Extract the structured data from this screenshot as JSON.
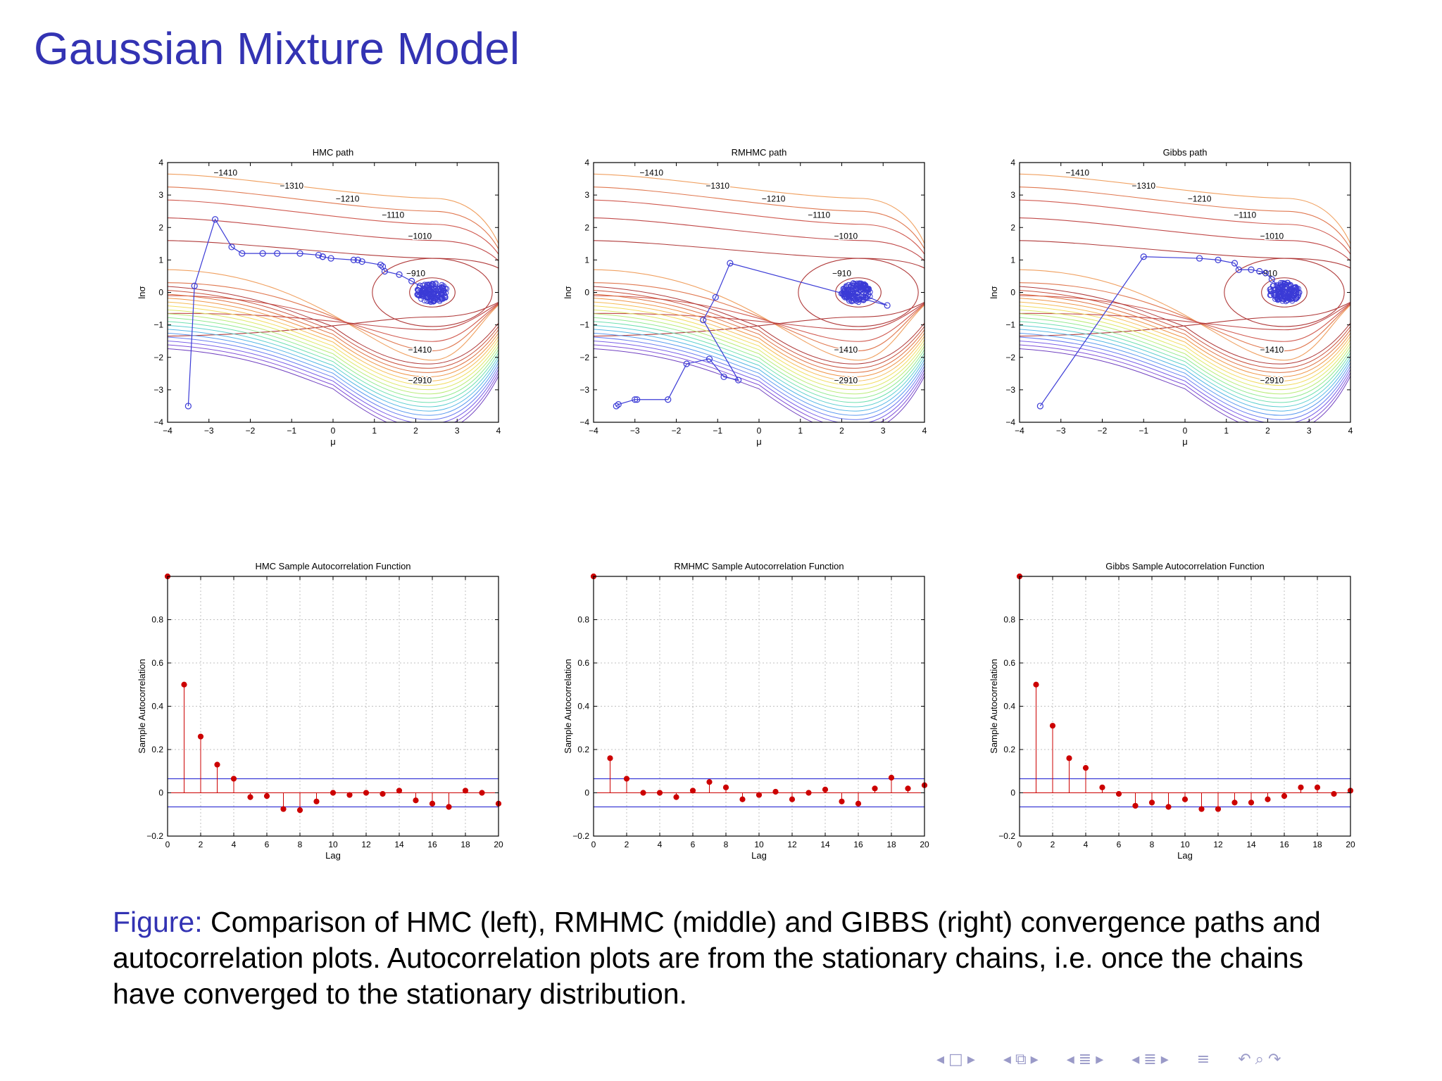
{
  "slide": {
    "title": "Gaussian Mixture Model",
    "caption_label": "Figure:",
    "caption_text": "Comparison of HMC (left), RMHMC (middle) and GIBBS (right) convergence paths and autocorrelation plots. Autocorrelation plots are from the stationary chains, i.e. once the chains have converged to the stationary distribution."
  },
  "colors": {
    "title": "#3333b3",
    "path": "#3b3bd6",
    "stem": "#cc0000",
    "conf_band": "#3b3bd6"
  },
  "nav_icons": [
    "triangle-left-icon",
    "frame-icon",
    "triangle-right-icon",
    "triangle-left-icon",
    "section-icon",
    "triangle-right-icon",
    "triangle-left-icon",
    "subsection-icon",
    "triangle-right-icon",
    "triangle-left-icon",
    "slide-icon",
    "triangle-right-icon",
    "align-icon",
    "undo-icon",
    "search-icon",
    "redo-icon"
  ],
  "chart_data": [
    {
      "type": "contour",
      "title": "HMC path",
      "xlabel": "μ",
      "ylabel": "lnσ",
      "xlim": [
        -4,
        4
      ],
      "ylim": [
        -4,
        4
      ],
      "xticks": [
        "−4",
        "−3",
        "−2",
        "−1",
        "0",
        "1",
        "2",
        "3",
        "4"
      ],
      "yticks": [
        "−4",
        "−3",
        "−2",
        "−1",
        "0",
        "1",
        "2",
        "3",
        "4"
      ],
      "contour_labels": [
        "−1410",
        "−1310",
        "−1210",
        "−1110",
        "−1010",
        "−910",
        "−1410",
        "−2910"
      ],
      "path": {
        "x": [
          -3.5,
          -3.35,
          -2.85,
          -2.45,
          -2.2,
          -1.7,
          -1.35,
          -0.8,
          -0.35,
          -0.25,
          -0.25,
          -0.05,
          0.5,
          0.6,
          0.7,
          1.15,
          1.2,
          1.25,
          1.6,
          1.9,
          2.1,
          2.3,
          2.45
        ],
        "y": [
          -3.5,
          0.2,
          2.25,
          1.4,
          1.2,
          1.2,
          1.2,
          1.2,
          1.15,
          1.1,
          1.1,
          1.05,
          1.0,
          1.0,
          0.95,
          0.85,
          0.8,
          0.65,
          0.55,
          0.35,
          0.2,
          0.05,
          0.0
        ]
      },
      "cluster": {
        "x": 2.4,
        "y": 0.0
      }
    },
    {
      "type": "contour",
      "title": "RMHMC path",
      "xlabel": "μ",
      "ylabel": "lnσ",
      "xlim": [
        -4,
        4
      ],
      "ylim": [
        -4,
        4
      ],
      "xticks": [
        "−4",
        "−3",
        "−2",
        "−1",
        "0",
        "1",
        "2",
        "3",
        "4"
      ],
      "yticks": [
        "−4",
        "−3",
        "−2",
        "−1",
        "0",
        "1",
        "2",
        "3",
        "4"
      ],
      "contour_labels": [
        "−1410",
        "−1310",
        "−1210",
        "−1110",
        "−1010",
        "−910",
        "−1410",
        "−2910"
      ],
      "path": {
        "x": [
          -3.45,
          -3.4,
          -3.0,
          -2.95,
          -2.2,
          -1.75,
          -1.2,
          -0.85,
          -0.5,
          -1.35,
          -1.05,
          -0.7,
          3.1,
          2.4
        ],
        "y": [
          -3.5,
          -3.45,
          -3.3,
          -3.3,
          -3.3,
          -2.2,
          -2.05,
          -2.6,
          -2.7,
          -0.85,
          -0.15,
          0.9,
          -0.4,
          0.0
        ]
      },
      "cluster": {
        "x": 2.35,
        "y": 0.0
      }
    },
    {
      "type": "contour",
      "title": "Gibbs path",
      "xlabel": "μ",
      "ylabel": "lnσ",
      "xlim": [
        -4,
        4
      ],
      "ylim": [
        -4,
        4
      ],
      "xticks": [
        "−4",
        "−3",
        "−2",
        "−1",
        "0",
        "1",
        "2",
        "3",
        "4"
      ],
      "yticks": [
        "−4",
        "−3",
        "−2",
        "−1",
        "0",
        "1",
        "2",
        "3",
        "4"
      ],
      "contour_labels": [
        "−1410",
        "−1310",
        "−1210",
        "−1110",
        "−1010",
        "−910",
        "−1410",
        "−2910"
      ],
      "path": {
        "x": [
          -3.5,
          -1.0,
          0.35,
          0.8,
          1.2,
          1.3,
          1.6,
          1.8,
          1.95,
          2.1,
          2.4
        ],
        "y": [
          -3.5,
          1.1,
          1.05,
          1.0,
          0.9,
          0.7,
          0.7,
          0.65,
          0.6,
          0.4,
          0.0
        ]
      },
      "cluster": {
        "x": 2.4,
        "y": 0.0
      }
    },
    {
      "type": "stem",
      "title": "HMC Sample Autocorrelation Function",
      "xlabel": "Lag",
      "ylabel": "Sample Autocorrelation",
      "xlim": [
        0,
        20
      ],
      "ylim": [
        -0.2,
        1.0
      ],
      "xticks": [
        "0",
        "2",
        "4",
        "6",
        "8",
        "10",
        "12",
        "14",
        "16",
        "18",
        "20"
      ],
      "yticks": [
        "−0.2",
        "0",
        "0.2",
        "0.4",
        "0.6",
        "0.8"
      ],
      "x": [
        0,
        1,
        2,
        3,
        4,
        5,
        6,
        7,
        8,
        9,
        10,
        11,
        12,
        13,
        14,
        15,
        16,
        17,
        18,
        19,
        20
      ],
      "values": [
        1.0,
        0.5,
        0.26,
        0.13,
        0.065,
        -0.02,
        -0.015,
        -0.075,
        -0.08,
        -0.04,
        0.0,
        -0.01,
        0.0,
        -0.005,
        0.01,
        -0.035,
        -0.05,
        -0.065,
        0.01,
        0.0,
        -0.05
      ],
      "bounds": [
        0.065,
        -0.065
      ]
    },
    {
      "type": "stem",
      "title": "RMHMC Sample Autocorrelation Function",
      "xlabel": "Lag",
      "ylabel": "Sample Autocorrelation",
      "xlim": [
        0,
        20
      ],
      "ylim": [
        -0.2,
        1.0
      ],
      "xticks": [
        "0",
        "2",
        "4",
        "6",
        "8",
        "10",
        "12",
        "14",
        "16",
        "18",
        "20"
      ],
      "yticks": [
        "−0.2",
        "0",
        "0.2",
        "0.4",
        "0.6",
        "0.8"
      ],
      "x": [
        0,
        1,
        2,
        3,
        4,
        5,
        6,
        7,
        8,
        9,
        10,
        11,
        12,
        13,
        14,
        15,
        16,
        17,
        18,
        19,
        20
      ],
      "values": [
        1.0,
        0.16,
        0.065,
        0.0,
        0.0,
        -0.02,
        0.01,
        0.05,
        0.025,
        -0.03,
        -0.01,
        0.005,
        -0.03,
        0.0,
        0.015,
        -0.04,
        -0.05,
        0.02,
        0.07,
        0.02,
        0.035
      ],
      "bounds": [
        0.065,
        -0.065
      ]
    },
    {
      "type": "stem",
      "title": "Gibbs Sample Autocorrelation Function",
      "xlabel": "Lag",
      "ylabel": "Sample Autocorrelation",
      "xlim": [
        0,
        20
      ],
      "ylim": [
        -0.2,
        1.0
      ],
      "xticks": [
        "0",
        "2",
        "4",
        "6",
        "8",
        "10",
        "12",
        "14",
        "16",
        "18",
        "20"
      ],
      "yticks": [
        "−0.2",
        "0",
        "0.2",
        "0.4",
        "0.6",
        "0.8"
      ],
      "x": [
        0,
        1,
        2,
        3,
        4,
        5,
        6,
        7,
        8,
        9,
        10,
        11,
        12,
        13,
        14,
        15,
        16,
        17,
        18,
        19,
        20
      ],
      "values": [
        1.0,
        0.5,
        0.31,
        0.16,
        0.115,
        0.025,
        -0.005,
        -0.06,
        -0.045,
        -0.065,
        -0.03,
        -0.075,
        -0.075,
        -0.045,
        -0.045,
        -0.03,
        -0.015,
        0.025,
        0.025,
        -0.005,
        0.01
      ],
      "bounds": [
        0.065,
        -0.065
      ]
    }
  ]
}
